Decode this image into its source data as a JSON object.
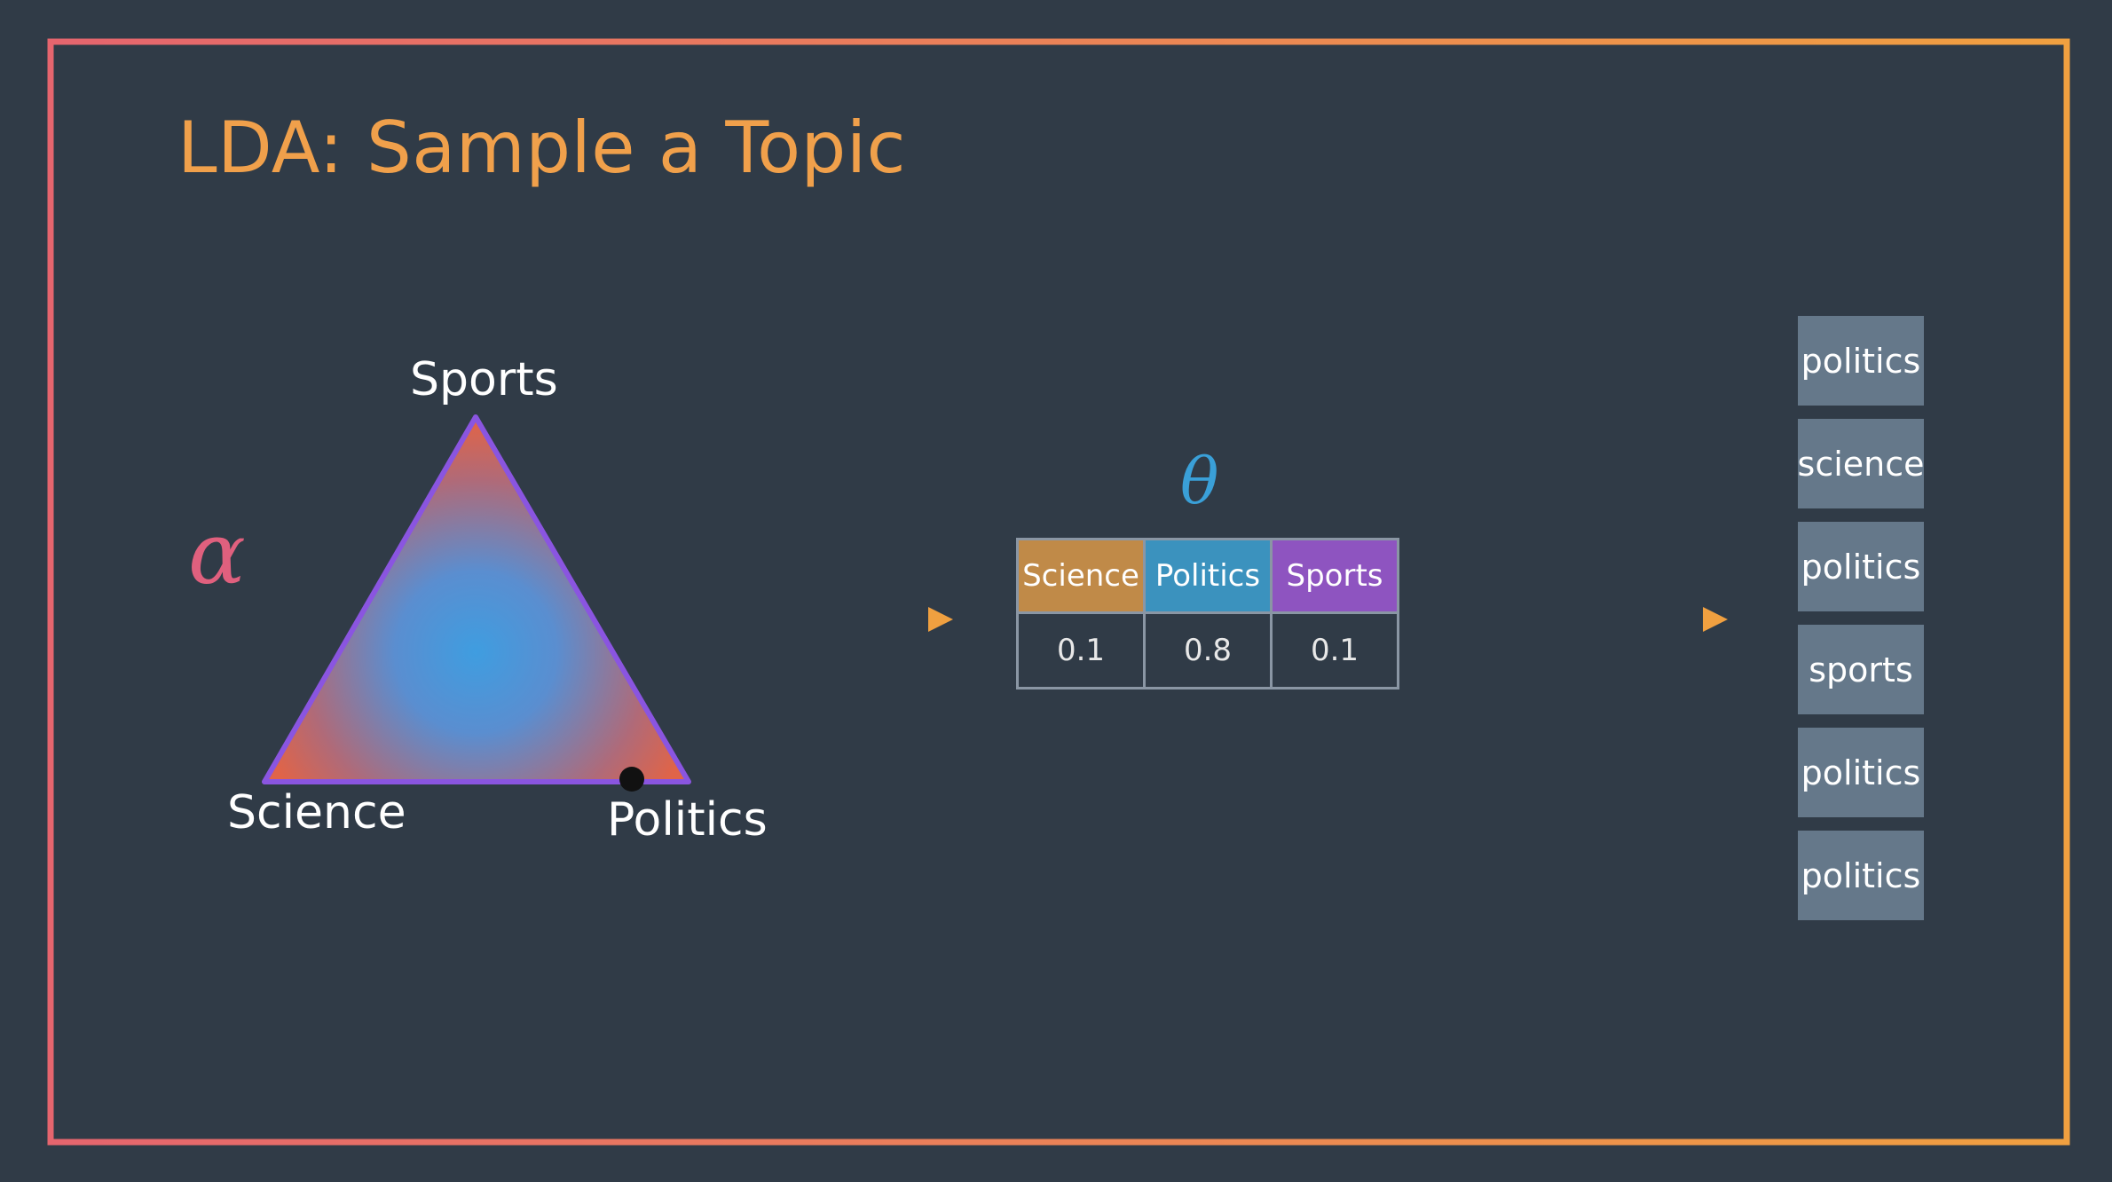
{
  "title": "LDA: Sample a Topic",
  "alpha_symbol": "α",
  "theta_symbol": "θ",
  "simplex": {
    "vertices": {
      "top": "Sports",
      "bottom_left": "Science",
      "bottom_right": "Politics"
    }
  },
  "theta_table": {
    "headers": [
      "Science",
      "Politics",
      "Sports"
    ],
    "values": [
      "0.1",
      "0.8",
      "0.1"
    ]
  },
  "sampled_words": [
    "politics",
    "science",
    "politics",
    "sports",
    "politics",
    "politics"
  ],
  "colors": {
    "background": "#303b47",
    "frame_start": "#e5656e",
    "frame_end": "#f0a040",
    "science": "#c08a48",
    "politics": "#3b92be",
    "sports": "#8e54c0",
    "word_box": "#65788a"
  }
}
